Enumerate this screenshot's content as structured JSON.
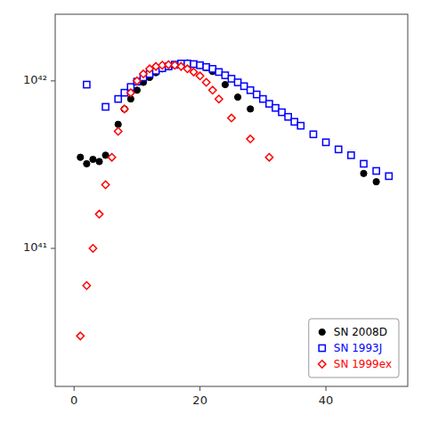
{
  "chart_data": {
    "type": "scatter",
    "log": "y",
    "legend": "lower right",
    "grid": false,
    "xlim": [
      -3,
      53
    ],
    "xticks": [
      0,
      20,
      40
    ],
    "ylim": [
      1.5e+40,
      2.5e+42
    ],
    "yticks": [
      {
        "value": 1e+41,
        "label": "10⁴¹"
      },
      {
        "value": 1e+42,
        "label": "10⁴²"
      }
    ],
    "series": [
      {
        "name": "SN 2008D",
        "color": "black",
        "marker": "circle",
        "x": [
          1,
          2,
          3,
          4,
          5,
          7,
          8,
          9,
          10,
          11,
          12,
          13,
          14,
          15,
          16,
          17,
          18,
          19,
          20,
          21,
          22,
          24,
          26,
          28,
          46,
          48
        ],
        "values": [
          3.5e+41,
          3.2e+41,
          3.4e+41,
          3.3e+41,
          3.6e+41,
          5.5e+41,
          6.8e+41,
          7.8e+41,
          8.8e+41,
          9.8e+41,
          1.05e+42,
          1.12e+42,
          1.18e+42,
          1.22e+42,
          1.25e+42,
          1.27e+42,
          1.28e+42,
          1.26e+42,
          1.24e+42,
          1.2e+42,
          1.14e+42,
          9.5e+41,
          8e+41,
          6.8e+41,
          2.8e+41,
          2.5e+41
        ]
      },
      {
        "name": "SN 1993J",
        "color": "blue",
        "marker": "open-square",
        "x": [
          2,
          5,
          7,
          8,
          9,
          10,
          11,
          12,
          13,
          14,
          15,
          16,
          17,
          18,
          19,
          20,
          21,
          22,
          23,
          24,
          25,
          26,
          27,
          28,
          29,
          30,
          31,
          32,
          33,
          34,
          35,
          36,
          38,
          40,
          42,
          44,
          46,
          48,
          50
        ],
        "values": [
          9.5e+41,
          7e+41,
          7.8e+41,
          8.5e+41,
          9.2e+41,
          9.9e+41,
          1.05e+42,
          1.1e+42,
          1.15e+42,
          1.19e+42,
          1.22e+42,
          1.25e+42,
          1.27e+42,
          1.27e+42,
          1.26e+42,
          1.24e+42,
          1.21e+42,
          1.18e+42,
          1.13e+42,
          1.08e+42,
          1.03e+42,
          9.8e+41,
          9.3e+41,
          8.8e+41,
          8.3e+41,
          7.8e+41,
          7.3e+41,
          6.9e+41,
          6.5e+41,
          6.1e+41,
          5.7e+41,
          5.4e+41,
          4.8e+41,
          4.3e+41,
          3.9e+41,
          3.6e+41,
          3.2e+41,
          2.9e+41,
          2.7e+41
        ]
      },
      {
        "name": "SN 1999ex",
        "color": "red",
        "marker": "open-diamond",
        "x": [
          1,
          2,
          3,
          4,
          5,
          6,
          7,
          8,
          9,
          10,
          11,
          12,
          13,
          14,
          15,
          16,
          17,
          18,
          19,
          20,
          21,
          22,
          23,
          25,
          28,
          31
        ],
        "values": [
          3e+40,
          6e+40,
          1e+41,
          1.6e+41,
          2.4e+41,
          3.5e+41,
          5e+41,
          6.8e+41,
          8.5e+41,
          1e+42,
          1.1e+42,
          1.18e+42,
          1.22e+42,
          1.24e+42,
          1.25e+42,
          1.24e+42,
          1.22e+42,
          1.18e+42,
          1.13e+42,
          1.07e+42,
          9.8e+41,
          8.8e+41,
          7.8e+41,
          6e+41,
          4.5e+41,
          3.5e+41
        ]
      }
    ]
  }
}
